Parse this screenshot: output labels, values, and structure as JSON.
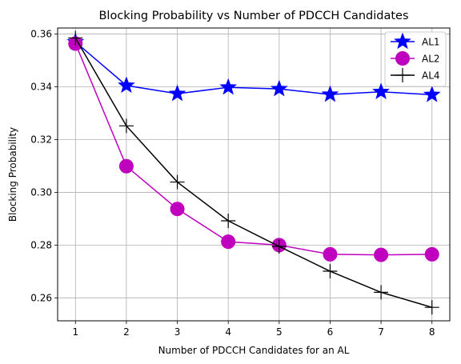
{
  "chart_data": {
    "type": "line",
    "title": "Blocking Probability vs Number of PDCCH Candidates",
    "xlabel": "Number of PDCCH Candidates for an AL",
    "ylabel": "Blocking Probability",
    "x": [
      1,
      2,
      3,
      4,
      5,
      6,
      7,
      8
    ],
    "xlim": [
      0.65,
      8.35
    ],
    "ylim": [
      0.2513,
      0.3623
    ],
    "xticks": [
      "1",
      "2",
      "3",
      "4",
      "5",
      "6",
      "7",
      "8"
    ],
    "yticks": [
      "0.26",
      "0.28",
      "0.30",
      "0.32",
      "0.34",
      "0.36"
    ],
    "ytick_values": [
      0.26,
      0.28,
      0.3,
      0.32,
      0.34,
      0.36
    ],
    "grid": true,
    "legend_position": "top-right",
    "series": [
      {
        "name": "AL1",
        "color": "#0000ff",
        "marker": "star",
        "values": [
          0.357,
          0.3405,
          0.3374,
          0.3398,
          0.3392,
          0.3371,
          0.3381,
          0.337
        ]
      },
      {
        "name": "AL2",
        "color": "#bf00bf",
        "marker": "circle",
        "values": [
          0.3564,
          0.3099,
          0.2937,
          0.2813,
          0.28,
          0.2765,
          0.2763,
          0.2765
        ]
      },
      {
        "name": "AL4",
        "color": "#000000",
        "marker": "plus",
        "values": [
          0.3585,
          0.3252,
          0.3039,
          0.2892,
          0.2795,
          0.2701,
          0.2621,
          0.2564
        ]
      }
    ]
  }
}
